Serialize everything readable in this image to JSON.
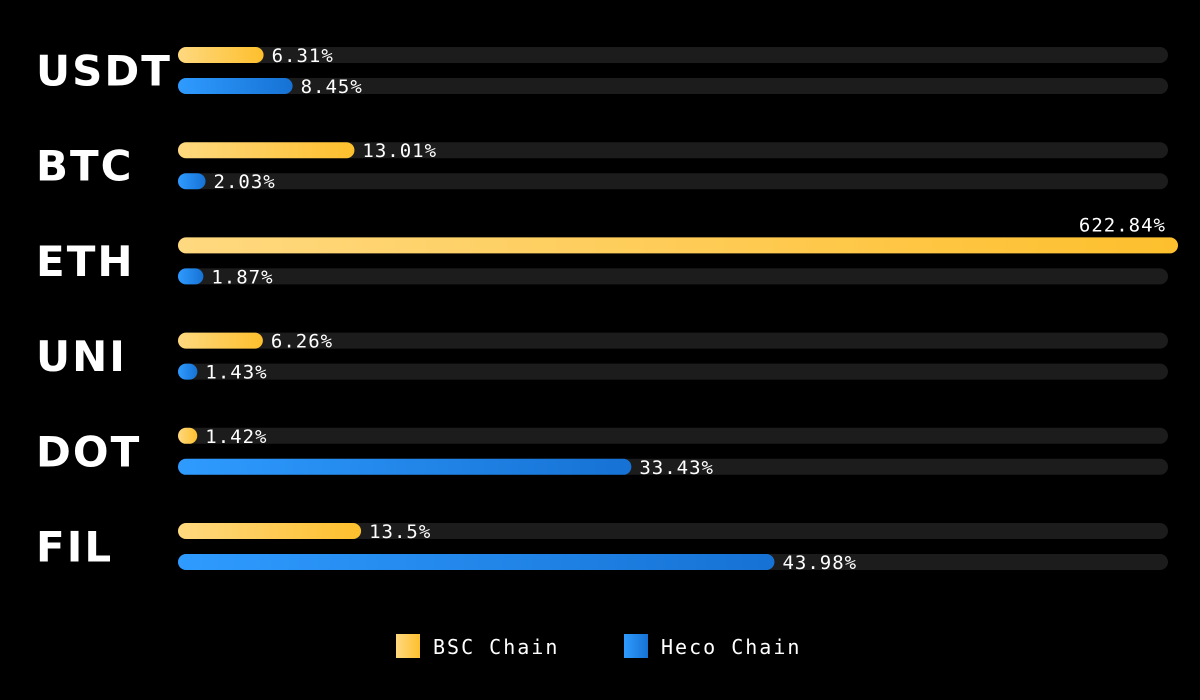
{
  "chart_data": {
    "type": "bar",
    "orientation": "horizontal",
    "categories": [
      "USDT",
      "BTC",
      "ETH",
      "UNI",
      "DOT",
      "FIL"
    ],
    "series": [
      {
        "name": "BSC Chain",
        "values": [
          6.31,
          13.01,
          622.84,
          6.26,
          1.42,
          13.5
        ],
        "labels": [
          "6.31%",
          "13.01%",
          "622.84%",
          "6.26%",
          "1.42%",
          "13.5%"
        ],
        "color": "#fdbf2d",
        "color_light": "#ffd980"
      },
      {
        "name": "Heco Chain",
        "values": [
          8.45,
          2.03,
          1.87,
          1.43,
          33.43,
          43.98
        ],
        "labels": [
          "8.45%",
          "2.03%",
          "1.87%",
          "1.43%",
          "33.43%",
          "43.98%"
        ],
        "color": "#1a7fe0",
        "color_light": "#2f9bff"
      }
    ],
    "legend_position": "bottom-center",
    "grid": false,
    "track_color": "#1c1c1c"
  }
}
